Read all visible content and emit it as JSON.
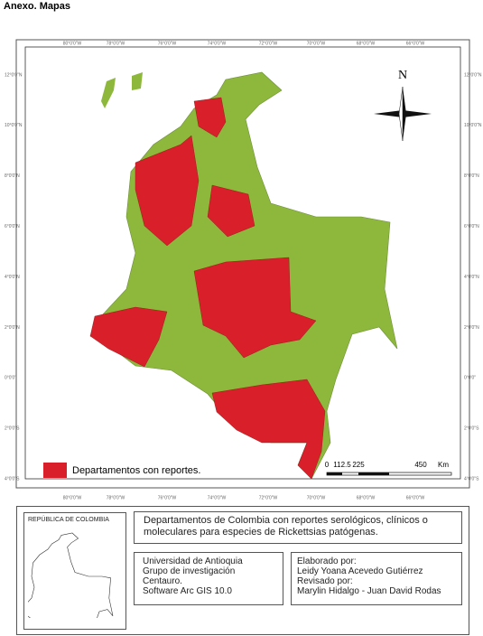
{
  "header": {
    "title": "Anexo. Mapas"
  },
  "map": {
    "longitude_labels": [
      "80°0'0\"W",
      "78°0'0\"W",
      "76°0'0\"W",
      "74°0'0\"W",
      "72°0'0\"W",
      "70°0'0\"W",
      "68°0'0\"W",
      "66°0'0\"W"
    ],
    "latitude_labels": [
      "12°0'0\"N",
      "10°0'0\"N",
      "8°0'0\"N",
      "6°0'0\"N",
      "4°0'0\"N",
      "2°0'0\"N",
      "0°0'0\"",
      "2°0'0\"S",
      "4°0'0\"S"
    ],
    "north": "N",
    "scale": {
      "ticks": [
        "0",
        "112.5",
        "225",
        "450"
      ],
      "unit": "Km"
    },
    "legend": "Departamentos con reportes."
  },
  "footer": {
    "inset_title": "REPÚBLICA DE COLOMBIA",
    "title": "Departamentos de Colombia con reportes serológicos, clínicos o moleculares para especies de Rickettsias patógenas.",
    "institution": [
      "Universidad de Antioquia",
      "Grupo de investigación Centauro.",
      "Software Arc GIS 10.0"
    ],
    "credits": [
      "Elaborado por:",
      "Leidy Yoana Acevedo Gutiérrez",
      "Revisado por:",
      "Marylin Hidalgo - Juan David Rodas"
    ]
  }
}
